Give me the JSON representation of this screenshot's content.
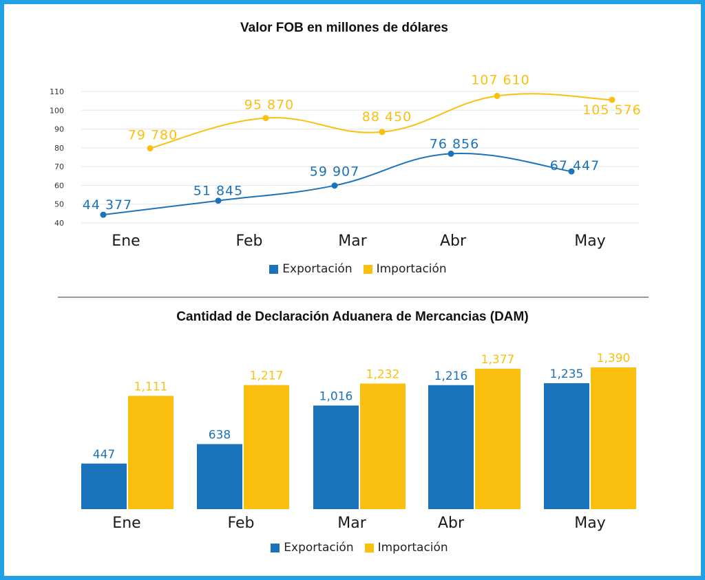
{
  "colors": {
    "export": "#1a72bb",
    "import": "#fbbf10",
    "frame": "#1ea0e6",
    "grid": "#e6e6e6"
  },
  "legend": {
    "export": "Exportación",
    "import": "Importación"
  },
  "chart_data": [
    {
      "type": "line",
      "title": "Valor FOB en millones de dólares",
      "categories": [
        "Ene",
        "Feb",
        "Mar",
        "Abr",
        "May"
      ],
      "y_ticks": [
        "40",
        "50",
        "60",
        "70",
        "80",
        "90",
        "100",
        "110"
      ],
      "ylim": [
        40,
        110
      ],
      "grid": true,
      "legend_position": "bottom",
      "series": [
        {
          "name": "Exportación",
          "values": [
            44.377,
            51.845,
            59.907,
            76.856,
            67.447
          ],
          "labels": [
            "44 377",
            "51 845",
            "59 907",
            "76 856",
            "67 447"
          ]
        },
        {
          "name": "Importación",
          "values": [
            79.78,
            95.87,
            88.45,
            107.61,
            105.576
          ],
          "labels": [
            "79 780",
            "95 870",
            "88 450",
            "107 610",
            "105 576"
          ]
        }
      ]
    },
    {
      "type": "bar",
      "title": "Cantidad de Declaración Aduanera de Mercancias (DAM)",
      "categories": [
        "Ene",
        "Feb",
        "Mar",
        "Abr",
        "May"
      ],
      "grid": false,
      "legend_position": "bottom",
      "series": [
        {
          "name": "Exportación",
          "values": [
            447,
            638,
            1016,
            1216,
            1235
          ],
          "labels": [
            "447",
            "638",
            "1,016",
            "1,216",
            "1,235"
          ]
        },
        {
          "name": "Importación",
          "values": [
            1111,
            1217,
            1232,
            1377,
            1390
          ],
          "labels": [
            "1,111",
            "1,217",
            "1,232",
            "1,377",
            "1,390"
          ]
        }
      ]
    }
  ]
}
